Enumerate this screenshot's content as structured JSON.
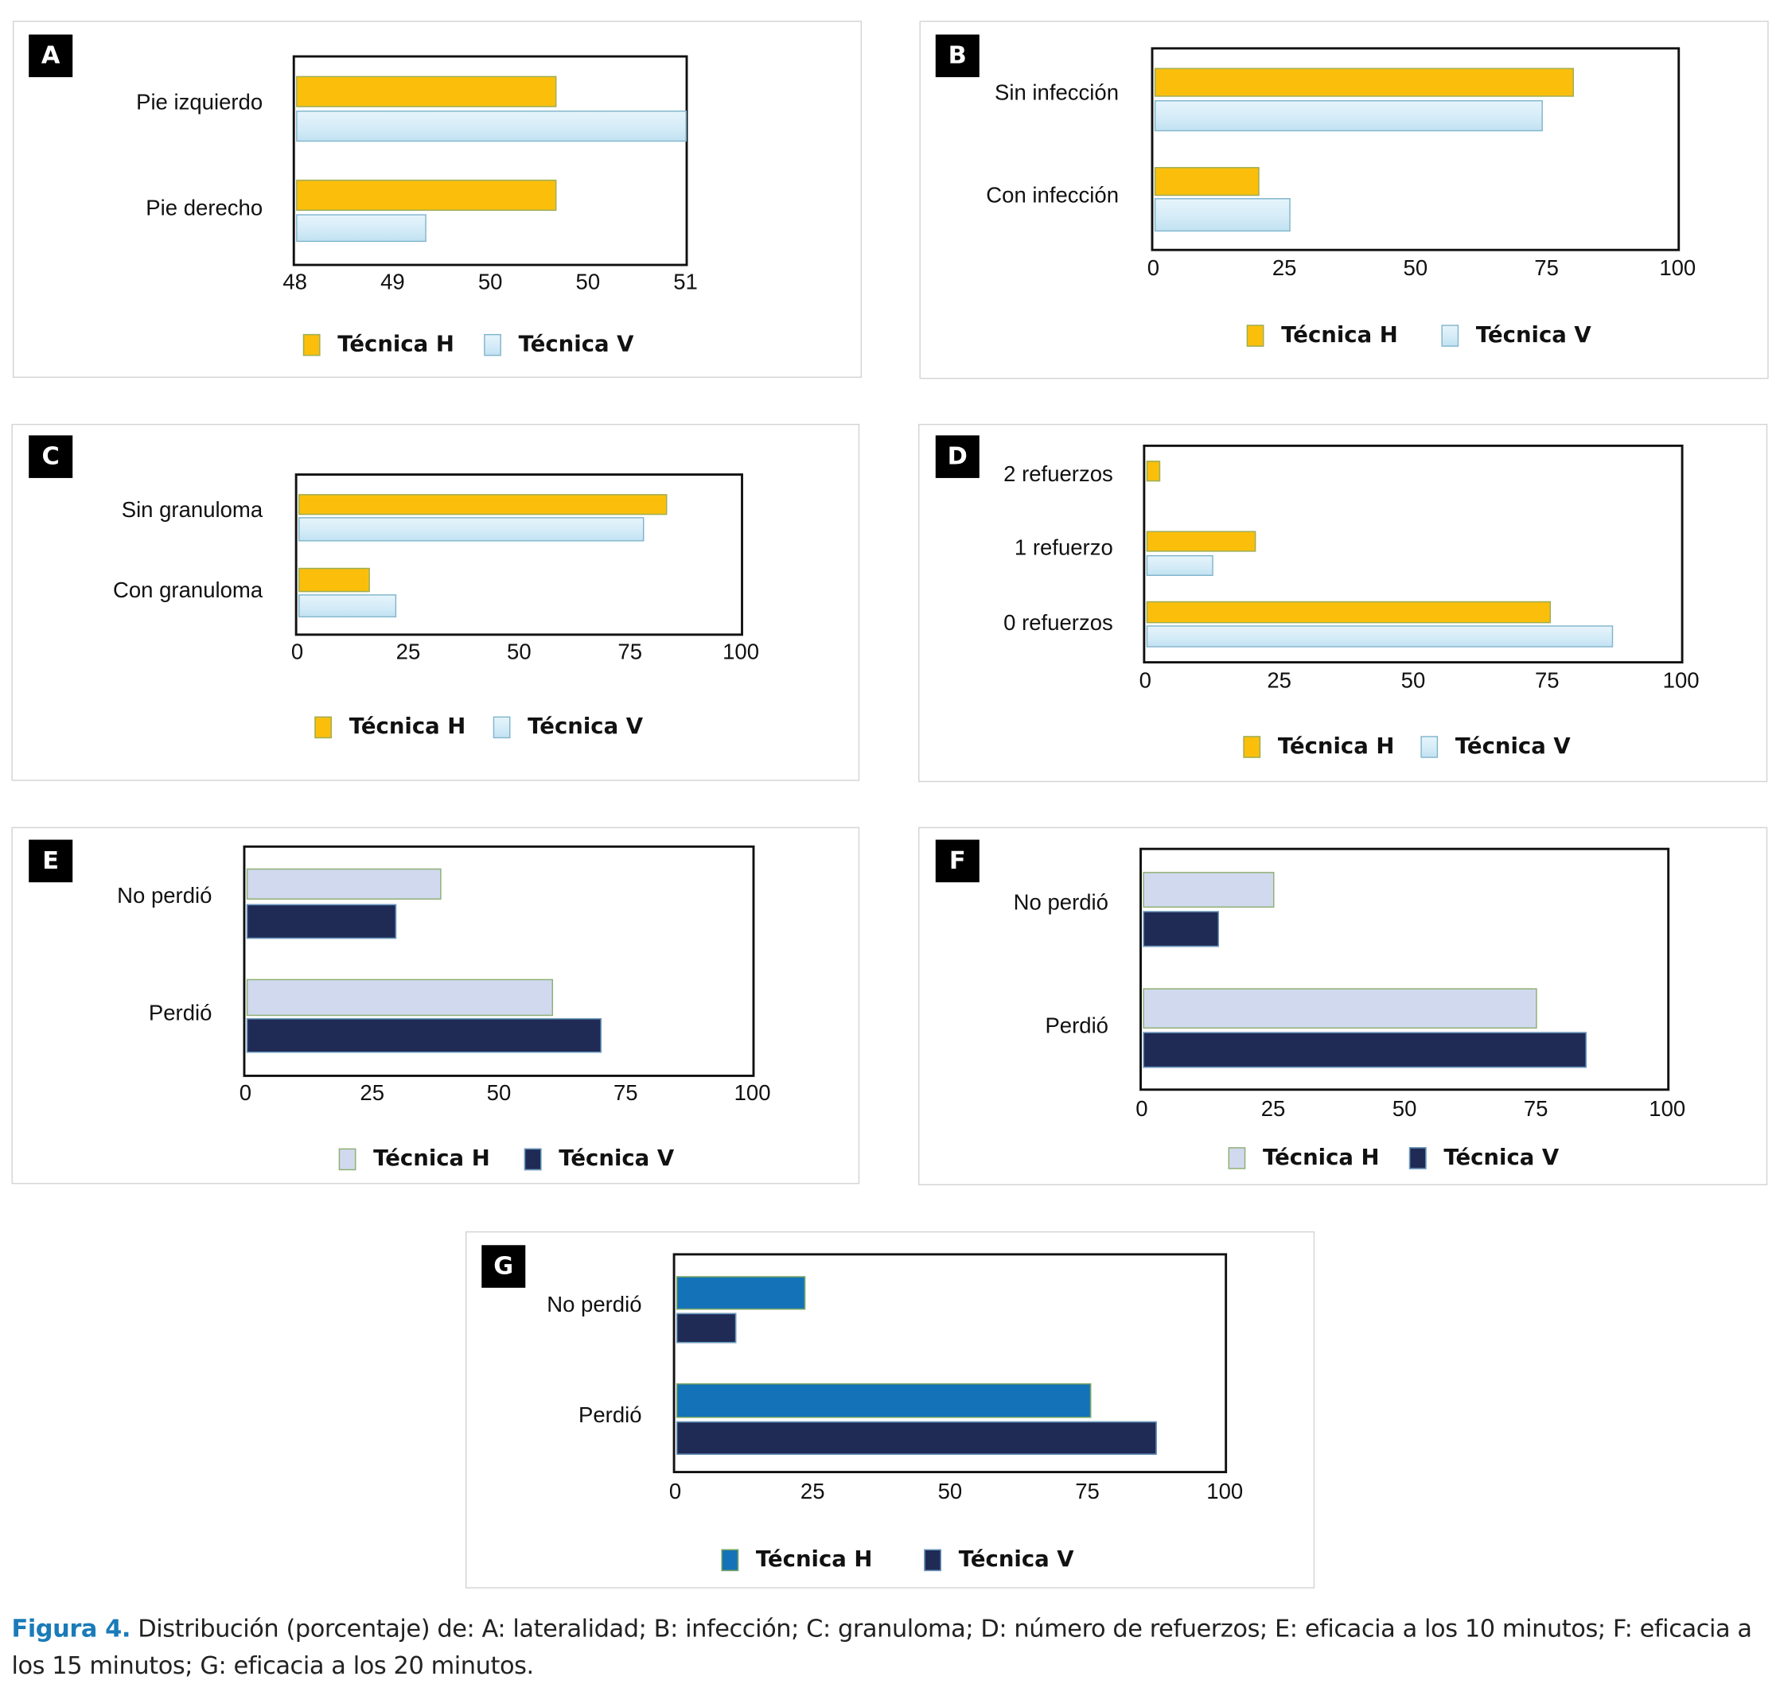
{
  "colors": {
    "yellow_h": "#fbbf0b",
    "lightblue_v": "#d3ebf7",
    "lavender_h": "#d1d9ef",
    "navy_v": "#1f2a55",
    "blue_h": "#1472b8",
    "caption_accent": "#1a7bb8"
  },
  "chart_data": [
    {
      "panel": "A",
      "type": "bar",
      "orientation": "horizontal",
      "categories": [
        "Pie izquierdo",
        "Pie derecho"
      ],
      "series": [
        {
          "name": "Técnica H",
          "values": [
            50,
            50
          ]
        },
        {
          "name": "Técnica V",
          "values": [
            51,
            49
          ]
        }
      ],
      "xlim": [
        48,
        51
      ],
      "tick_labels": [
        "48",
        "49",
        "50",
        "50",
        "51"
      ],
      "legend": "bottom",
      "grid": false
    },
    {
      "panel": "B",
      "type": "bar",
      "orientation": "horizontal",
      "categories": [
        "Sin infección",
        "Con infección"
      ],
      "series": [
        {
          "name": "Técnica H",
          "values": [
            80,
            20
          ]
        },
        {
          "name": "Técnica V",
          "values": [
            74,
            26
          ]
        }
      ],
      "xlim": [
        0,
        100
      ],
      "tick_labels": [
        "0",
        "25",
        "50",
        "75",
        "100"
      ],
      "legend": "bottom",
      "grid": false
    },
    {
      "panel": "C",
      "type": "bar",
      "orientation": "horizontal",
      "categories": [
        "Sin granuloma",
        "Con granuloma"
      ],
      "series": [
        {
          "name": "Técnica H",
          "values": [
            83,
            16
          ]
        },
        {
          "name": "Técnica V",
          "values": [
            78,
            22
          ]
        }
      ],
      "xlim": [
        0,
        100
      ],
      "tick_labels": [
        "0",
        "25",
        "50",
        "75",
        "100"
      ],
      "legend": "bottom",
      "grid": false
    },
    {
      "panel": "D",
      "type": "bar",
      "orientation": "horizontal",
      "categories": [
        "2 refuerzos",
        "1 refuerzo",
        "0 refuerzos"
      ],
      "series": [
        {
          "name": "Técnica H",
          "values": [
            2.5,
            20.5,
            75.5
          ]
        },
        {
          "name": "Técnica V",
          "values": [
            0,
            12.5,
            87
          ]
        }
      ],
      "xlim": [
        0,
        100
      ],
      "tick_labels": [
        "0",
        "25",
        "50",
        "75",
        "100"
      ],
      "legend": "bottom",
      "grid": false
    },
    {
      "panel": "E",
      "type": "bar",
      "orientation": "horizontal",
      "categories": [
        "No perdió",
        "Perdió"
      ],
      "series": [
        {
          "name": "Técnica H",
          "values": [
            38.5,
            60.5
          ]
        },
        {
          "name": "Técnica V",
          "values": [
            29.5,
            70
          ]
        }
      ],
      "xlim": [
        0,
        100
      ],
      "tick_labels": [
        "0",
        "25",
        "50",
        "75",
        "100"
      ],
      "legend": "bottom",
      "grid": false
    },
    {
      "panel": "F",
      "type": "bar",
      "orientation": "horizontal",
      "categories": [
        "No perdió",
        "Perdió"
      ],
      "series": [
        {
          "name": "Técnica H",
          "values": [
            25,
            75
          ]
        },
        {
          "name": "Técnica V",
          "values": [
            14.5,
            84.5
          ]
        }
      ],
      "xlim": [
        0,
        100
      ],
      "tick_labels": [
        "0",
        "25",
        "50",
        "75",
        "100"
      ],
      "legend": "bottom",
      "grid": false
    },
    {
      "panel": "G",
      "type": "bar",
      "orientation": "horizontal",
      "categories": [
        "No perdió",
        "Perdió"
      ],
      "series": [
        {
          "name": "Técnica H",
          "values": [
            23.5,
            75.5
          ]
        },
        {
          "name": "Técnica V",
          "values": [
            11,
            87.5
          ]
        }
      ],
      "xlim": [
        0,
        100
      ],
      "tick_labels": [
        "0",
        "25",
        "50",
        "75",
        "100"
      ],
      "legend": "bottom",
      "grid": false
    }
  ],
  "caption": {
    "label": "Figura 4.",
    "text": " Distribución (porcentaje) de: A: lateralidad; B: infección; C: granuloma; D: número de refuerzos; E: eficacia a los 10 minutos; F: eficacia a los 15 minutos; G: eficacia a los 20 minutos."
  }
}
